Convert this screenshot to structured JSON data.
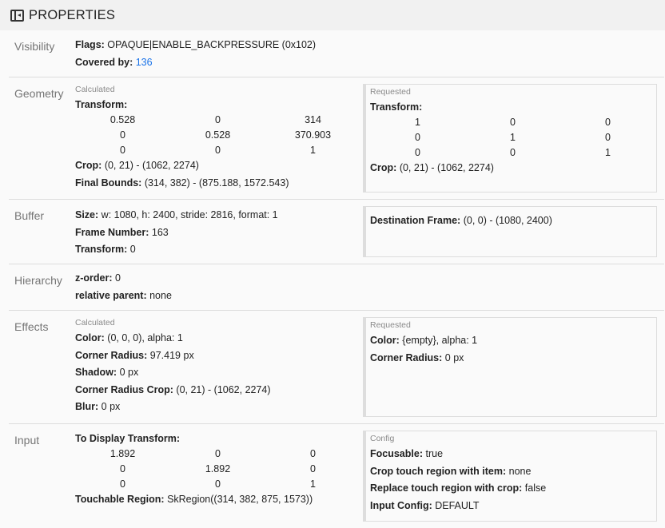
{
  "header": {
    "title": "PROPERTIES",
    "icon": "side-panel-icon"
  },
  "visibility": {
    "label": "Visibility",
    "flags_k": "Flags:",
    "flags_v": "OPAQUE|ENABLE_BACKPRESSURE (0x102)",
    "covered_k": "Covered by:",
    "covered_v": "136"
  },
  "geometry": {
    "label": "Geometry",
    "calc": {
      "title": "Calculated",
      "transform_k": "Transform:",
      "matrix": [
        [
          "0.528",
          "0",
          "314"
        ],
        [
          "0",
          "0.528",
          "370.903"
        ],
        [
          "0",
          "0",
          "1"
        ]
      ],
      "crop_k": "Crop:",
      "crop_v": "(0, 21) - (1062, 2274)",
      "fb_k": "Final Bounds:",
      "fb_v": "(314, 382) - (875.188, 1572.543)"
    },
    "req": {
      "title": "Requested",
      "transform_k": "Transform:",
      "matrix": [
        [
          "1",
          "0",
          "0"
        ],
        [
          "0",
          "1",
          "0"
        ],
        [
          "0",
          "0",
          "1"
        ]
      ],
      "crop_k": "Crop:",
      "crop_v": "(0, 21) - (1062, 2274)"
    }
  },
  "buffer": {
    "label": "Buffer",
    "size_k": "Size:",
    "size_v": "w: 1080, h: 2400, stride: 2816, format: 1",
    "fn_k": "Frame Number:",
    "fn_v": "163",
    "tr_k": "Transform:",
    "tr_v": "0",
    "df_k": "Destination Frame:",
    "df_v": "(0, 0) - (1080, 2400)"
  },
  "hierarchy": {
    "label": "Hierarchy",
    "z_k": "z-order:",
    "z_v": "0",
    "rp_k": "relative parent:",
    "rp_v": "none"
  },
  "effects": {
    "label": "Effects",
    "calc": {
      "title": "Calculated",
      "color_k": "Color:",
      "color_v": "(0, 0, 0), alpha: 1",
      "cr_k": "Corner Radius:",
      "cr_v": "97.419 px",
      "sh_k": "Shadow:",
      "sh_v": "0 px",
      "crc_k": "Corner Radius Crop:",
      "crc_v": "(0, 21) - (1062, 2274)",
      "blur_k": "Blur:",
      "blur_v": "0 px"
    },
    "req": {
      "title": "Requested",
      "color_k": "Color:",
      "color_v": "{empty}, alpha: 1",
      "cr_k": "Corner Radius:",
      "cr_v": "0 px"
    }
  },
  "input": {
    "label": "Input",
    "tdt_k": "To Display Transform:",
    "matrix": [
      [
        "1.892",
        "0",
        "0"
      ],
      [
        "0",
        "1.892",
        "0"
      ],
      [
        "0",
        "0",
        "1"
      ]
    ],
    "tr_k": "Touchable Region:",
    "tr_v": "SkRegion((314, 382, 875, 1573))",
    "config": {
      "title": "Config",
      "f_k": "Focusable:",
      "f_v": "true",
      "ct_k": "Crop touch region with item:",
      "ct_v": "none",
      "rt_k": "Replace touch region with crop:",
      "rt_v": "false",
      "ic_k": "Input Config:",
      "ic_v": "DEFAULT"
    }
  },
  "colors": {
    "link": "#1a73e8",
    "header_bg": "#f1f1f1"
  }
}
